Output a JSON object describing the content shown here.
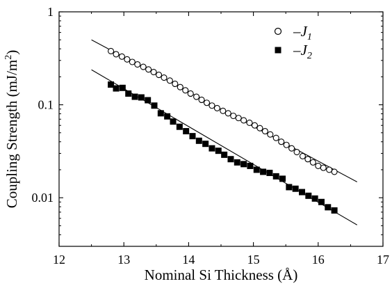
{
  "chart_data": {
    "type": "scatter",
    "xlabel": "Nominal Si Thickness (Å)",
    "ylabel": "Coupling Strength (mJ/m²)",
    "ylabel_parts": [
      "Coupling Strength (mJ/m",
      "2",
      ")"
    ],
    "xlim": [
      12,
      17
    ],
    "ylim": [
      0.003,
      1
    ],
    "yscale": "log",
    "x_ticks": [
      "12",
      "13",
      "14",
      "15",
      "16",
      "17"
    ],
    "y_ticks": [
      "1",
      "0.1",
      "0.01"
    ],
    "legend_position": "top-right",
    "series": [
      {
        "name": "−J₁",
        "legend_prefix": "–",
        "legend_symbol": "J",
        "legend_subscript": "1",
        "marker": "open-circle",
        "x": [
          12.8,
          12.88,
          12.97,
          13.05,
          13.13,
          13.21,
          13.3,
          13.38,
          13.46,
          13.54,
          13.62,
          13.71,
          13.79,
          13.87,
          13.95,
          14.03,
          14.12,
          14.2,
          14.28,
          14.36,
          14.44,
          14.53,
          14.61,
          14.69,
          14.77,
          14.85,
          14.94,
          15.02,
          15.1,
          15.18,
          15.26,
          15.35,
          15.43,
          15.51,
          15.59,
          15.67,
          15.76,
          15.84,
          15.92,
          16.0,
          16.08,
          16.17,
          16.25
        ],
        "y": [
          0.378,
          0.35,
          0.33,
          0.308,
          0.289,
          0.272,
          0.256,
          0.24,
          0.225,
          0.21,
          0.196,
          0.182,
          0.168,
          0.155,
          0.143,
          0.132,
          0.122,
          0.113,
          0.105,
          0.098,
          0.092,
          0.086,
          0.081,
          0.076,
          0.072,
          0.068,
          0.064,
          0.06,
          0.056,
          0.052,
          0.048,
          0.044,
          0.04,
          0.037,
          0.034,
          0.031,
          0.028,
          0.026,
          0.024,
          0.022,
          0.021,
          0.02,
          0.019
        ]
      },
      {
        "name": "−J₂",
        "legend_prefix": "–",
        "legend_symbol": "J",
        "legend_subscript": "2",
        "marker": "filled-square",
        "x": [
          12.8,
          12.88,
          12.98,
          13.07,
          13.17,
          13.27,
          13.37,
          13.47,
          13.57,
          13.67,
          13.76,
          13.86,
          13.96,
          14.06,
          14.16,
          14.26,
          14.36,
          14.46,
          14.55,
          14.65,
          14.75,
          14.85,
          14.95,
          15.05,
          15.15,
          15.25,
          15.35,
          15.45,
          15.55,
          15.65,
          15.75,
          15.85,
          15.95,
          16.05,
          16.15,
          16.25
        ],
        "y": [
          0.165,
          0.15,
          0.152,
          0.132,
          0.122,
          0.12,
          0.112,
          0.098,
          0.081,
          0.075,
          0.066,
          0.058,
          0.052,
          0.046,
          0.041,
          0.038,
          0.034,
          0.032,
          0.029,
          0.026,
          0.024,
          0.023,
          0.022,
          0.02,
          0.019,
          0.0185,
          0.017,
          0.016,
          0.013,
          0.0125,
          0.0115,
          0.0105,
          0.0098,
          0.009,
          0.0079,
          0.0073
        ]
      }
    ],
    "fit_lines": [
      {
        "series": "−J₁",
        "x": [
          12.5,
          16.6
        ],
        "y": [
          0.5,
          0.0148
        ]
      },
      {
        "series": "−J₂",
        "x": [
          12.5,
          16.6
        ],
        "y": [
          0.238,
          0.0051
        ]
      }
    ]
  }
}
